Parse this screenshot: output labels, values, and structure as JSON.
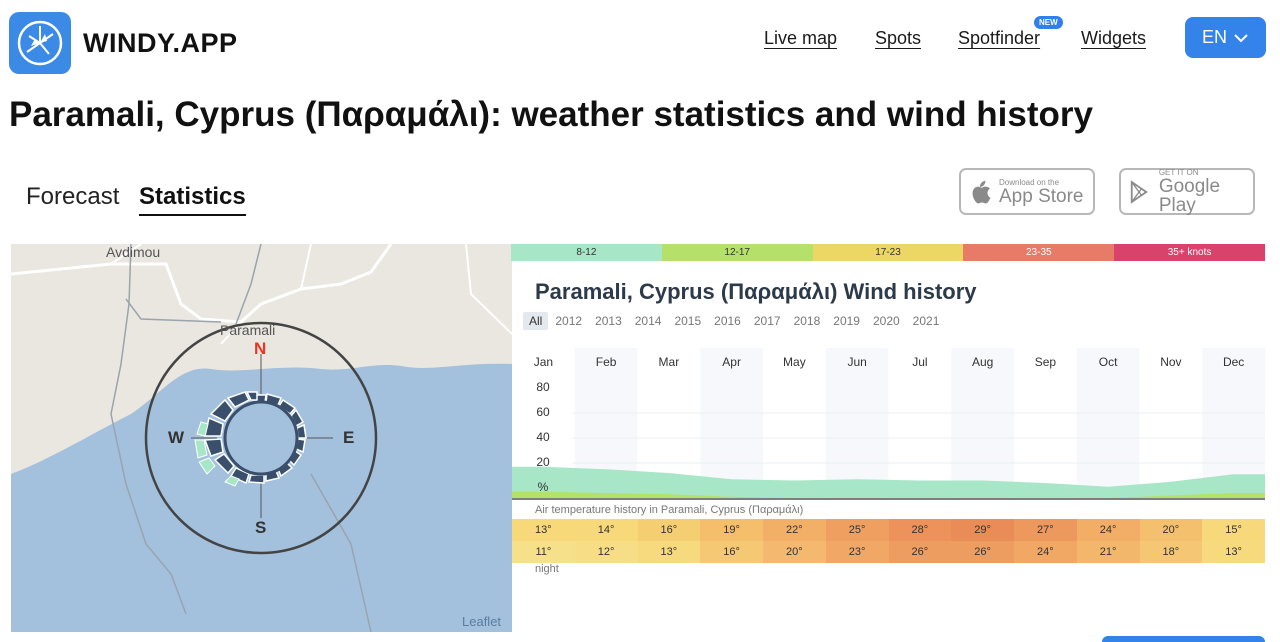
{
  "header": {
    "brand": "WINDY.APP",
    "logo_icon": "windy-app-logo-icon",
    "nav": [
      {
        "label": "Live map"
      },
      {
        "label": "Spots"
      },
      {
        "label": "Spotfinder"
      },
      {
        "label": "Widgets"
      }
    ],
    "new_badge": "NEW",
    "language": "EN"
  },
  "page_title": "Paramali, Cyprus (Παραμάλι): weather statistics and wind history",
  "tabs": [
    {
      "label": "Forecast",
      "active": false
    },
    {
      "label": "Statistics",
      "active": true
    }
  ],
  "stores": {
    "app_store": {
      "small": "Download on the",
      "big": "App Store"
    },
    "google_play": {
      "small": "GET IT ON",
      "big": "Google Play"
    }
  },
  "map": {
    "labels": {
      "avdimou": "Avdimou",
      "paramali": "Paramali"
    },
    "compass": {
      "n": "N",
      "e": "E",
      "s": "S",
      "w": "W"
    },
    "attribution": "Leaflet"
  },
  "wind_legend": [
    {
      "label": "8-12",
      "color": "#a8e6c8"
    },
    {
      "label": "12-17",
      "color": "#b5e06a"
    },
    {
      "label": "17-23",
      "color": "#ecd765"
    },
    {
      "label": "23-35",
      "color": "#e87a68"
    },
    {
      "label": "35+ knots",
      "color": "#d9426b"
    }
  ],
  "chart_title": "Paramali, Cyprus (Παραμάλι) Wind history",
  "years": [
    "All",
    "2012",
    "2013",
    "2014",
    "2015",
    "2016",
    "2017",
    "2018",
    "2019",
    "2020",
    "2021"
  ],
  "chart_data": {
    "type": "area",
    "categories": [
      "Jan",
      "Feb",
      "Mar",
      "Apr",
      "May",
      "Jun",
      "Jul",
      "Aug",
      "Sep",
      "Oct",
      "Nov",
      "Dec"
    ],
    "y_ticks": [
      "80",
      "60",
      "40",
      "20"
    ],
    "ylabel": "%",
    "ylim": [
      0,
      100
    ],
    "series": [
      {
        "color": "#a8e6c8",
        "values": [
          20,
          19,
          17,
          14,
          14,
          15,
          14,
          14,
          12,
          9,
          11,
          15
        ]
      },
      {
        "color": "#b5e06a",
        "values": [
          5,
          4,
          3,
          1,
          0,
          0,
          0,
          0,
          0,
          0,
          2,
          4
        ]
      }
    ]
  },
  "temperature": {
    "caption": "Air temperature history in Paramali, Cyprus (Παραμάλι)",
    "day": [
      "13°",
      "14°",
      "16°",
      "19°",
      "22°",
      "25°",
      "28°",
      "29°",
      "27°",
      "24°",
      "20°",
      "15°"
    ],
    "night": [
      "11°",
      "12°",
      "13°",
      "16°",
      "20°",
      "23°",
      "26°",
      "26°",
      "24°",
      "21°",
      "18°",
      "13°"
    ],
    "night_label": "night",
    "day_colors": [
      "#f7d97a",
      "#f7d97a",
      "#f6ce72",
      "#f4be6a",
      "#f2b066",
      "#efa060",
      "#ec925a",
      "#ea8c58",
      "#ed985c",
      "#f2ad66",
      "#f4c06e",
      "#f7d87a"
    ],
    "night_colors": [
      "#f7e08a",
      "#f7dd86",
      "#f7d97e",
      "#f5c874",
      "#f4b86e",
      "#f1a866",
      "#ee9d60",
      "#ee9d60",
      "#f0a864",
      "#f3b76c",
      "#f5c774",
      "#f7d97e"
    ]
  }
}
